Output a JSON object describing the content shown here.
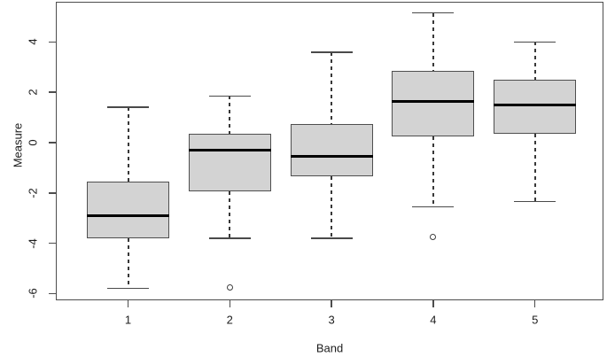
{
  "chart_data": {
    "type": "boxplot",
    "title": "",
    "xlabel": "Band",
    "ylabel": "Measure",
    "categories": [
      "1",
      "2",
      "3",
      "4",
      "5"
    ],
    "y_ticks": [
      -6,
      -4,
      -2,
      0,
      2,
      4
    ],
    "ylim": [
      -6.3,
      5.6
    ],
    "grid": false,
    "legend": null,
    "series": [
      {
        "category": "1",
        "whisker_low": -5.8,
        "q1": -3.8,
        "median": -2.9,
        "q3": -1.55,
        "whisker_high": 1.4,
        "outliers": []
      },
      {
        "category": "2",
        "whisker_low": -3.8,
        "q1": -1.95,
        "median": -0.3,
        "q3": 0.35,
        "whisker_high": 1.85,
        "outliers": [
          -5.75
        ]
      },
      {
        "category": "3",
        "whisker_low": -3.8,
        "q1": -1.35,
        "median": -0.55,
        "q3": 0.75,
        "whisker_high": 3.6,
        "outliers": []
      },
      {
        "category": "4",
        "whisker_low": -2.55,
        "q1": 0.25,
        "median": 1.65,
        "q3": 2.85,
        "whisker_high": 5.15,
        "outliers": [
          -3.75
        ]
      },
      {
        "category": "5",
        "whisker_low": -2.35,
        "q1": 0.35,
        "median": 1.5,
        "q3": 2.5,
        "whisker_high": 4.0,
        "outliers": []
      }
    ],
    "style": {
      "box_fill": "#d3d3d3",
      "box_border": "#4f4f4f",
      "median_color": "#000000",
      "whisker_style": "dashed",
      "outlier_marker": "open-circle",
      "background": "#ffffff"
    }
  }
}
